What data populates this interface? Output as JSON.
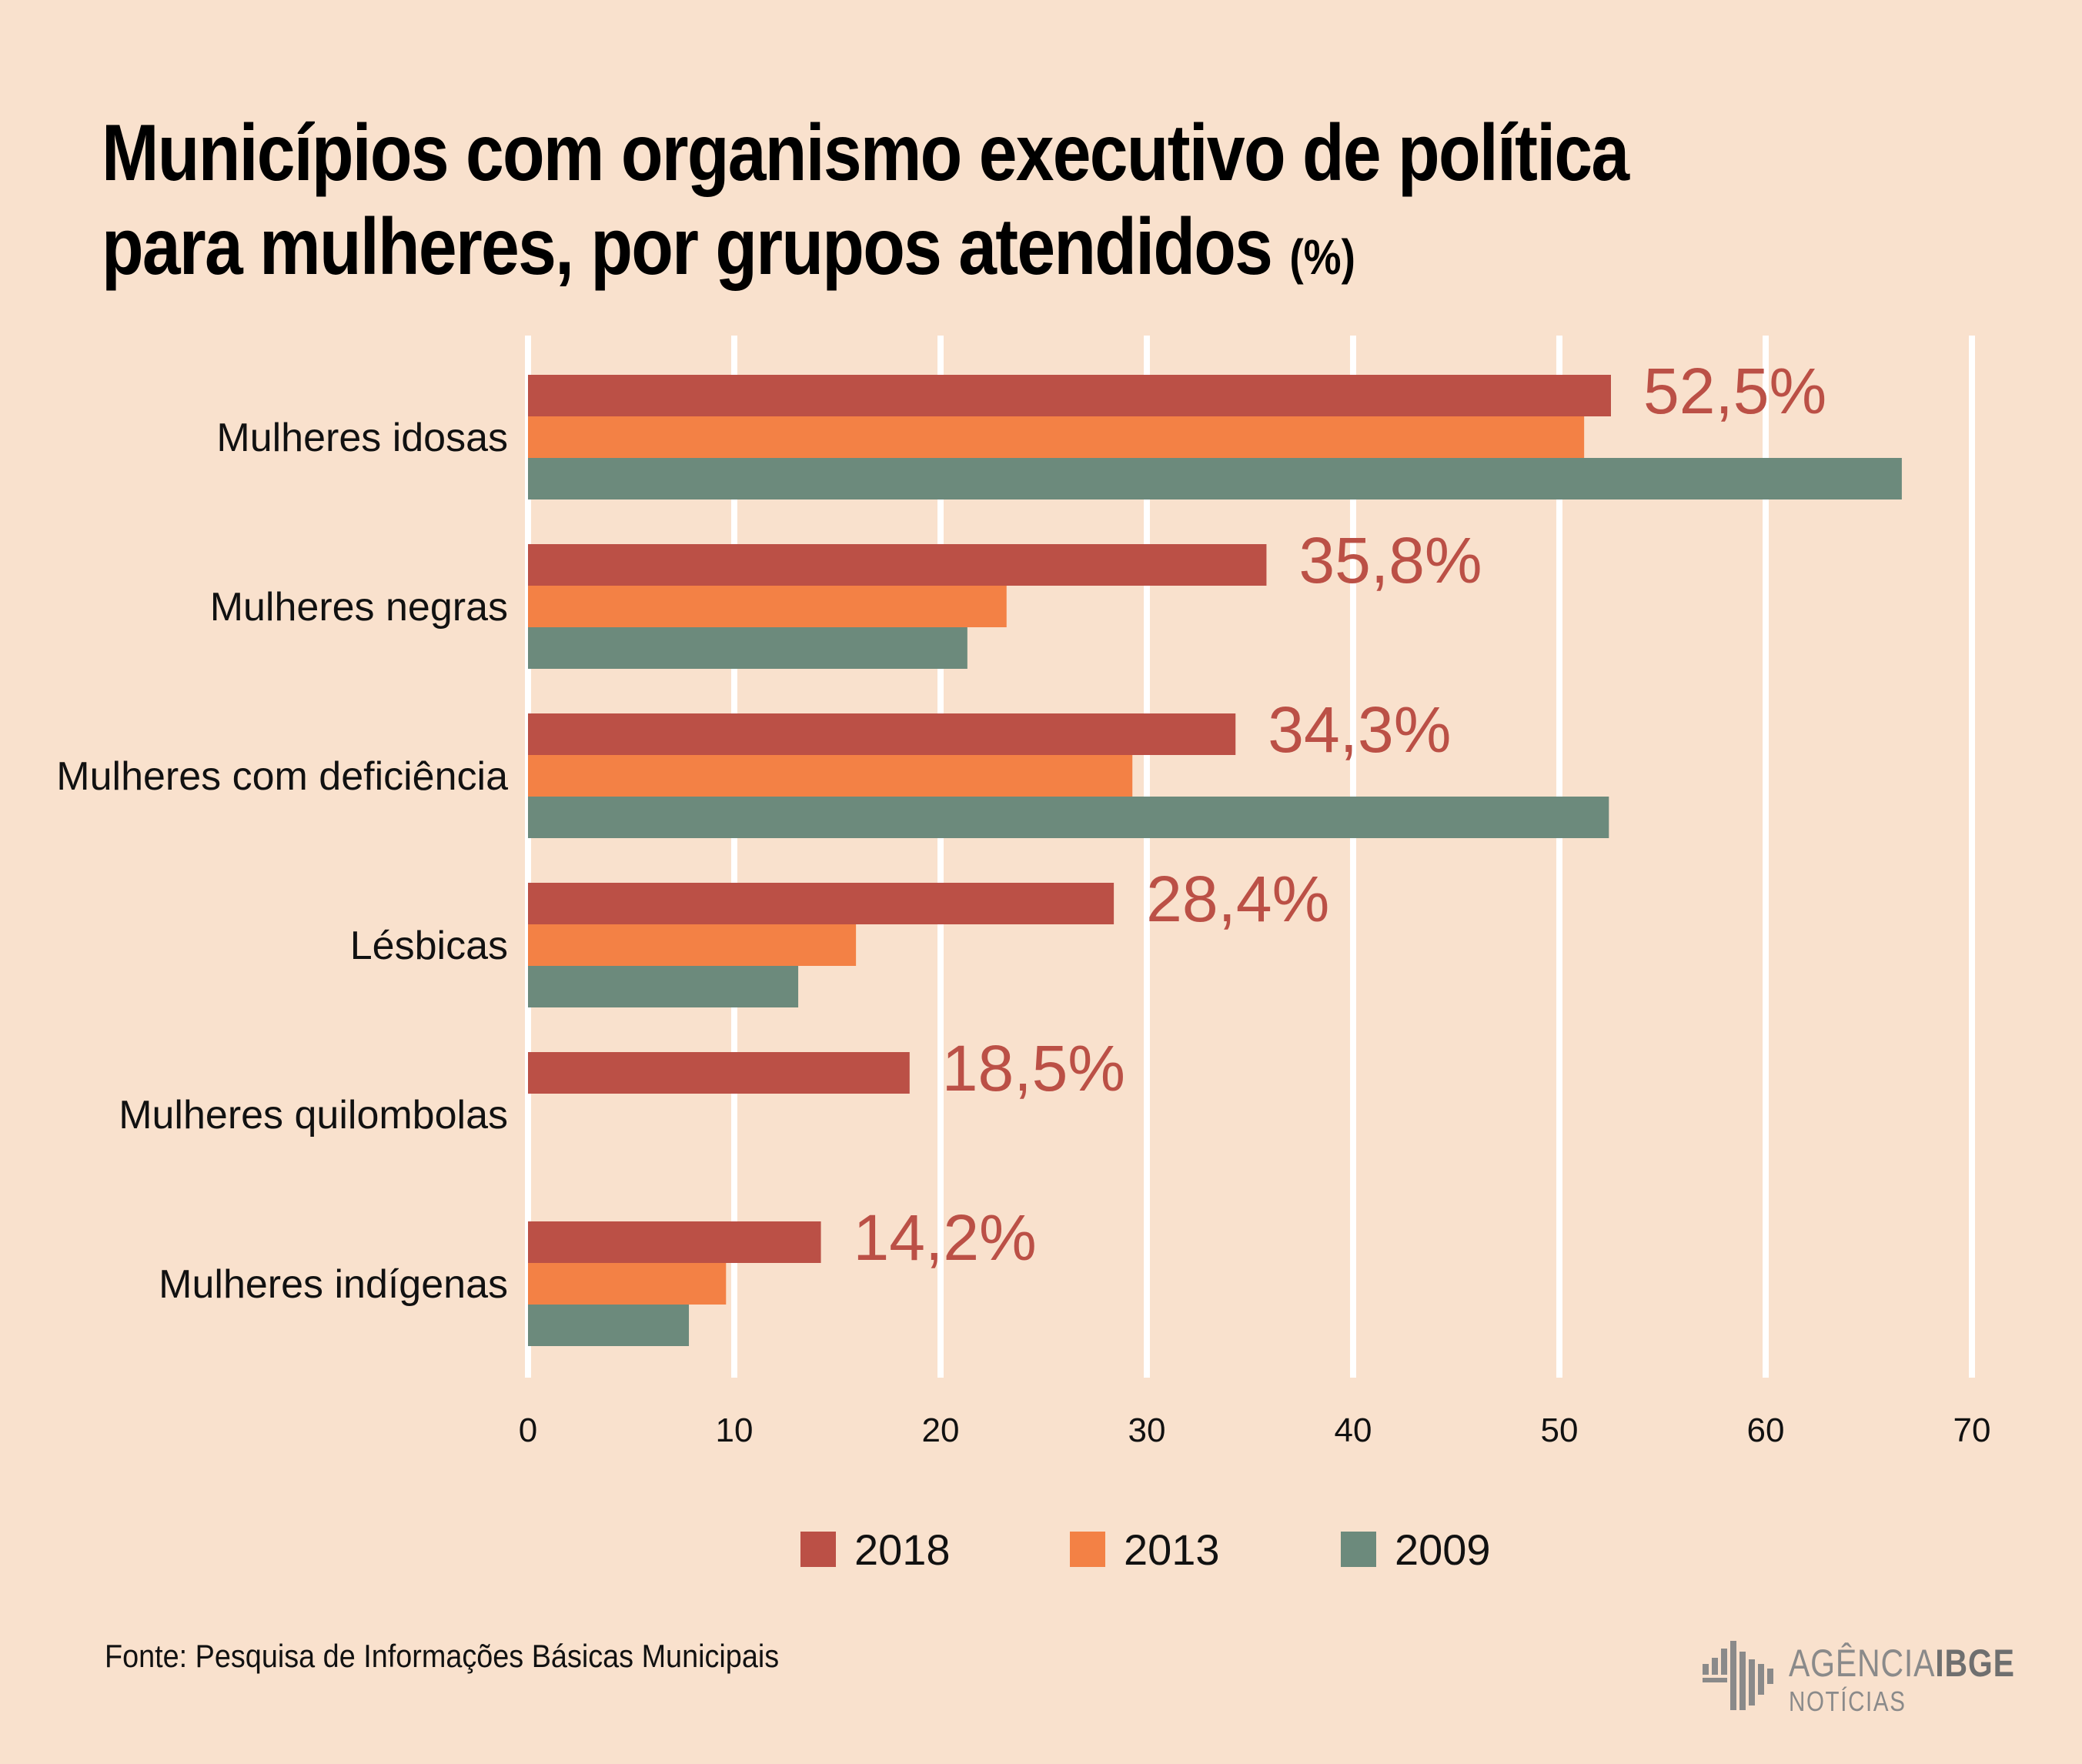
{
  "title": {
    "line1": "Municípios com organismo executivo de política",
    "line2": "para mulheres, por grupos atendidos",
    "unit": "(%)"
  },
  "source": "Fonte: Pesquisa de Informações Básicas Municipais",
  "brand": {
    "name_part1": "AGÊNCIA",
    "name_part2": "IBGE",
    "subtitle": "NOTÍCIAS"
  },
  "colors": {
    "s2018": "#bb5046",
    "s2013": "#f38145",
    "s2009": "#6c8a7c",
    "grid": "#ffffff",
    "value_label": "#bb5046"
  },
  "chart_data": {
    "type": "bar",
    "orientation": "horizontal",
    "categories": [
      "Mulheres idosas",
      "Mulheres negras",
      "Mulheres com deficiência",
      "Lésbicas",
      "Mulheres quilombolas",
      "Mulheres indígenas"
    ],
    "series": [
      {
        "name": "2018",
        "values": [
          52.5,
          35.8,
          34.3,
          28.4,
          18.5,
          14.2
        ]
      },
      {
        "name": "2013",
        "values": [
          51.2,
          23.2,
          29.3,
          15.9,
          null,
          9.6
        ]
      },
      {
        "name": "2009",
        "values": [
          66.6,
          21.3,
          52.4,
          13.1,
          null,
          7.8
        ]
      }
    ],
    "value_labels": [
      "52,5%",
      "35,8%",
      "34,3%",
      "28,4%",
      "18,5%",
      "14,2%"
    ],
    "xlim": [
      0,
      70
    ],
    "xticks": [
      "0",
      "10",
      "20",
      "30",
      "40",
      "50",
      "60",
      "70"
    ],
    "grid": "vertical",
    "legend": "bottom"
  }
}
